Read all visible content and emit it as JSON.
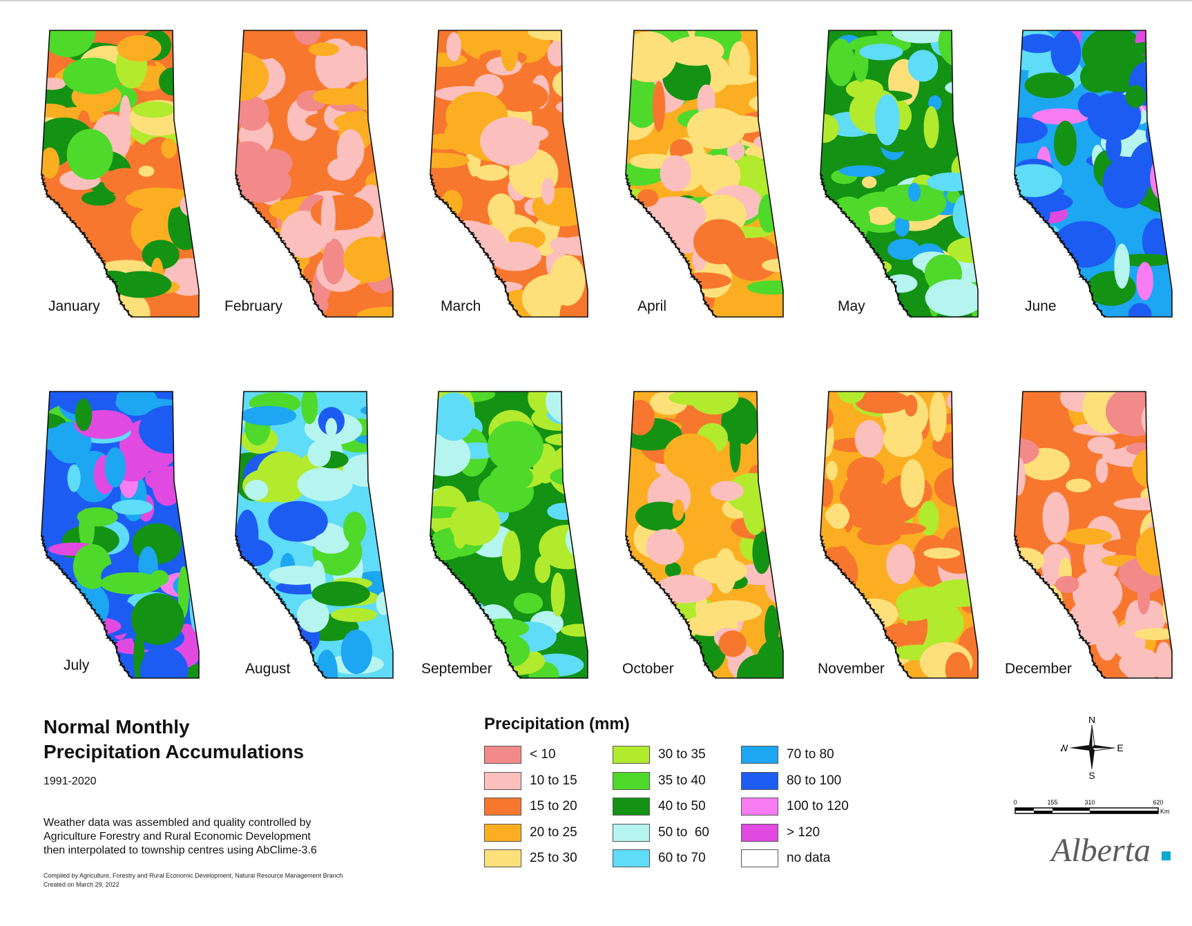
{
  "months": [
    {
      "label": "January",
      "palette": [
        "#f7772e",
        "#f7772e",
        "#fbae22",
        "#fbae22",
        "#fde07a",
        "#fbc0bd",
        "#b2ea2e",
        "#4fd92a",
        "#149214"
      ]
    },
    {
      "label": "February",
      "palette": [
        "#f7772e",
        "#f7772e",
        "#fbc0bd",
        "#fbc0bd",
        "#fbc0bd",
        "#f28a8a",
        "#fbae22"
      ]
    },
    {
      "label": "March",
      "palette": [
        "#f7772e",
        "#f7772e",
        "#fbae22",
        "#fbae22",
        "#fbc0bd",
        "#fde07a",
        "#fbc0bd"
      ]
    },
    {
      "label": "April",
      "palette": [
        "#fbae22",
        "#fde07a",
        "#fde07a",
        "#f7772e",
        "#b2ea2e",
        "#4fd92a",
        "#149214",
        "#fbc0bd"
      ]
    },
    {
      "label": "May",
      "palette": [
        "#149214",
        "#149214",
        "#4fd92a",
        "#4fd92a",
        "#b2ea2e",
        "#5fdcf8",
        "#b6f4f0",
        "#fde07a",
        "#1da6f2"
      ]
    },
    {
      "label": "June",
      "palette": [
        "#1da6f2",
        "#1d5cf2",
        "#1d5cf2",
        "#5fdcf8",
        "#f87df3",
        "#e04ae0",
        "#149214",
        "#b6f4f0"
      ]
    },
    {
      "label": "July",
      "palette": [
        "#1d5cf2",
        "#1da6f2",
        "#1d5cf2",
        "#f87df3",
        "#5fdcf8",
        "#4fd92a",
        "#149214",
        "#e04ae0"
      ]
    },
    {
      "label": "August",
      "palette": [
        "#5fdcf8",
        "#b6f4f0",
        "#b6f4f0",
        "#1da6f2",
        "#149214",
        "#4fd92a",
        "#b2ea2e",
        "#1d5cf2"
      ]
    },
    {
      "label": "September",
      "palette": [
        "#149214",
        "#4fd92a",
        "#4fd92a",
        "#b2ea2e",
        "#b2ea2e",
        "#b6f4f0",
        "#5fdcf8"
      ]
    },
    {
      "label": "October",
      "palette": [
        "#fbae22",
        "#fbae22",
        "#fde07a",
        "#f7772e",
        "#fbc0bd",
        "#b2ea2e",
        "#149214"
      ]
    },
    {
      "label": "November",
      "palette": [
        "#fbae22",
        "#f7772e",
        "#f7772e",
        "#fde07a",
        "#fbc0bd",
        "#b2ea2e"
      ]
    },
    {
      "label": "December",
      "palette": [
        "#f7772e",
        "#f7772e",
        "#fbae22",
        "#fbc0bd",
        "#fbc0bd",
        "#fde07a",
        "#f28a8a"
      ]
    }
  ],
  "title": {
    "line1": "Normal Monthly",
    "line2": "Precipitation Accumulations"
  },
  "period": "1991-2020",
  "description": [
    "Weather data was assembled and quality controlled by",
    "Agriculture Forestry and Rural Economic Development",
    "then interpolated to township centres using AbClime-3.6"
  ],
  "credits": [
    "Compiled by Agriculture, Forestry and Rural Economic Development, Natural Resource Management Branch",
    "Created on March 29, 2022"
  ],
  "legend": {
    "title": "Precipitation (mm)",
    "items": [
      {
        "label": "< 10",
        "color": "#f28a8a"
      },
      {
        "label": "10 to 15",
        "color": "#fbc0bd"
      },
      {
        "label": "15 to 20",
        "color": "#f7772e"
      },
      {
        "label": "20 to 25",
        "color": "#fbae22"
      },
      {
        "label": "25 to 30",
        "color": "#fde07a"
      },
      {
        "label": "30 to 35",
        "color": "#b2ea2e"
      },
      {
        "label": "35 to 40",
        "color": "#4fd92a"
      },
      {
        "label": "40 to 50",
        "color": "#149214"
      },
      {
        "label": "50 to  60",
        "color": "#b6f4f0"
      },
      {
        "label": "60 to 70",
        "color": "#5fdcf8"
      },
      {
        "label": "70 to 80",
        "color": "#1da6f2"
      },
      {
        "label": "80 to 100",
        "color": "#1d5cf2"
      },
      {
        "label": "100 to 120",
        "color": "#f87df3"
      },
      {
        "label": "> 120",
        "color": "#e04ae0"
      },
      {
        "label": "no data",
        "color": "#ffffff"
      }
    ]
  },
  "compass": {
    "n": "N",
    "s": "S",
    "e": "E",
    "w": "W"
  },
  "scale": {
    "ticks": [
      "0",
      "155",
      "310",
      "620"
    ],
    "unit": "Km"
  },
  "logo": {
    "text": "Alberta",
    "accent": "#00aad2"
  }
}
